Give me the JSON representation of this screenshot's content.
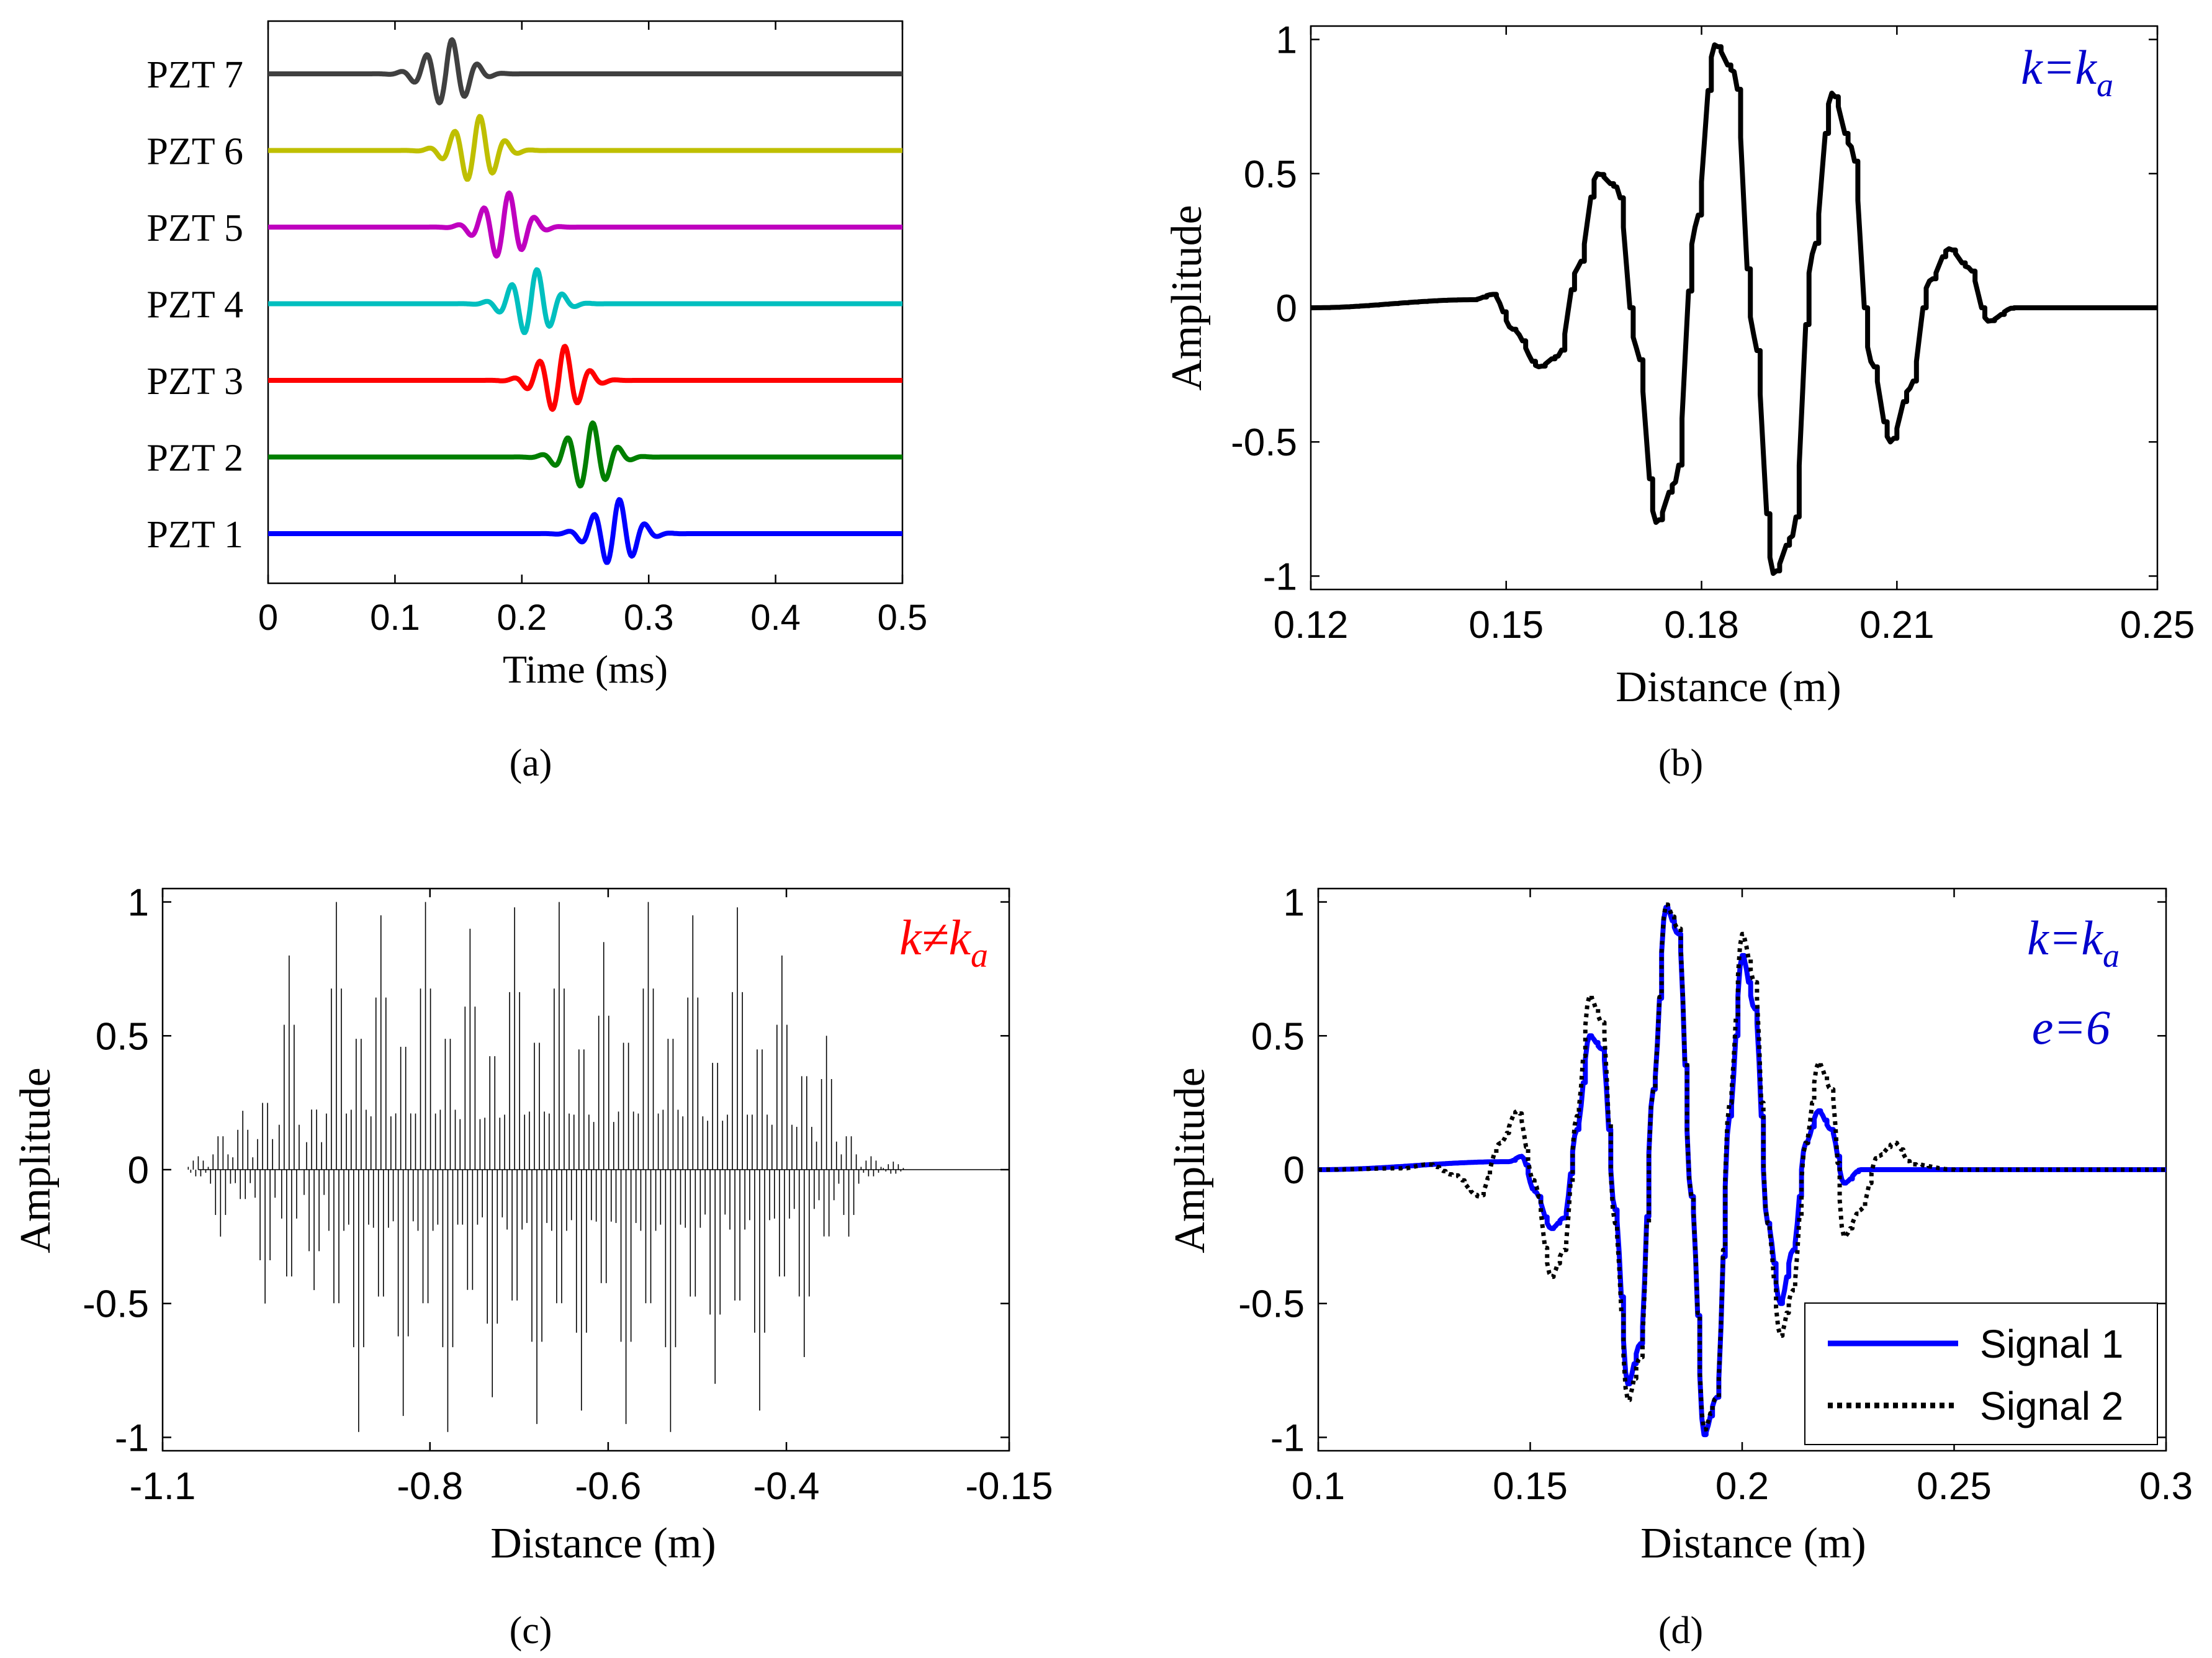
{
  "chart_data": [
    {
      "id": "a",
      "type": "line",
      "caption": "(a)",
      "xlabel": "Time (ms)",
      "ylabel": "",
      "xlim": [
        0,
        0.5
      ],
      "xticks": [
        "0",
        "0.1",
        "0.2",
        "0.3",
        "0.4",
        "0.5"
      ],
      "xtick_values": [
        0,
        0.1,
        0.2,
        0.3,
        0.4,
        0.5
      ],
      "ylim": [
        0,
        8
      ],
      "grid": false,
      "series": [
        {
          "name": "PZT 7",
          "color": "#404040",
          "center": 0.14,
          "offset": 7
        },
        {
          "name": "PZT 6",
          "color": "#bfbf00",
          "center": 0.162,
          "offset": 6
        },
        {
          "name": "PZT 5",
          "color": "#bf00bf",
          "center": 0.185,
          "offset": 5
        },
        {
          "name": "PZT 4",
          "color": "#00bfbf",
          "center": 0.207,
          "offset": 4
        },
        {
          "name": "PZT 3",
          "color": "#ff0000",
          "center": 0.229,
          "offset": 3
        },
        {
          "name": "PZT 2",
          "color": "#007f00",
          "center": 0.251,
          "offset": 2
        },
        {
          "name": "PZT 1",
          "color": "#0000ff",
          "center": 0.272,
          "offset": 1
        }
      ]
    },
    {
      "id": "b",
      "type": "line",
      "caption": "(b)",
      "annotation": {
        "main": "k=k",
        "sub": "a",
        "color": "#0000cc"
      },
      "xlabel": "Distance (m)",
      "ylabel": "Amplitude",
      "xlim": [
        0.12,
        0.25
      ],
      "xticks": [
        "0.12",
        "0.15",
        "0.18",
        "0.21",
        "0.25"
      ],
      "xtick_values": [
        0.12,
        0.15,
        0.18,
        0.21,
        0.25
      ],
      "ylim": [
        -1.05,
        1.05
      ],
      "yticks": [
        "1",
        "0.5",
        "0",
        "-0.5",
        "-1"
      ],
      "ytick_values": [
        1,
        0.5,
        0,
        -0.5,
        -1
      ],
      "grid": false,
      "series": [
        {
          "name": "k=ka",
          "color": "#000000",
          "x": [
            0.12,
            0.145,
            0.148,
            0.151,
            0.155,
            0.158,
            0.161,
            0.164,
            0.167,
            0.17,
            0.173,
            0.176,
            0.179,
            0.182,
            0.185,
            0.188,
            0.191,
            0.194,
            0.197,
            0.2,
            0.203,
            0.206,
            0.209,
            0.212,
            0.215,
            0.218,
            0.221,
            0.224,
            0.228,
            0.25
          ],
          "y": [
            0,
            0.03,
            0.05,
            -0.08,
            -0.22,
            -0.18,
            0.15,
            0.5,
            0.45,
            -0.15,
            -0.8,
            -0.65,
            0.3,
            0.98,
            0.88,
            -0.1,
            -0.99,
            -0.85,
            0.2,
            0.8,
            0.6,
            -0.2,
            -0.5,
            -0.3,
            0.1,
            0.22,
            0.15,
            -0.05,
            0,
            0
          ]
        }
      ]
    },
    {
      "id": "c",
      "type": "line",
      "caption": "(c)",
      "annotation": {
        "main": "k≠k",
        "sub": "a",
        "color": "#ff0000"
      },
      "xlabel": "Distance (m)",
      "ylabel": "Amplitude",
      "xlim": [
        -1.1,
        -0.15
      ],
      "xticks": [
        "-1.1",
        "-0.8",
        "-0.6",
        "-0.4",
        "-0.15"
      ],
      "xtick_values": [
        -1.1,
        -0.8,
        -0.6,
        -0.4,
        -0.15
      ],
      "ylim": [
        -1.05,
        1.05
      ],
      "yticks": [
        "1",
        "0.5",
        "0",
        "-0.5",
        "-1"
      ],
      "ytick_values": [
        1,
        0.5,
        0,
        -0.5,
        -1
      ],
      "grid": false,
      "series": [
        {
          "name": "k≠ka",
          "color": "#000000",
          "spikes_x": [
            -1.06,
            -1.035,
            -1.01,
            -0.985,
            -0.958,
            -0.93,
            -0.905,
            -0.88,
            -0.855,
            -0.83,
            -0.805,
            -0.78,
            -0.755,
            -0.73,
            -0.705,
            -0.68,
            -0.655,
            -0.63,
            -0.605,
            -0.58,
            -0.555,
            -0.53,
            -0.505,
            -0.48,
            -0.455,
            -0.43,
            -0.405,
            -0.38,
            -0.355,
            -0.33,
            -0.305,
            -0.28
          ],
          "spikes_y": [
            0.05,
            -0.25,
            0.22,
            -0.5,
            0.8,
            -0.45,
            1.0,
            -0.98,
            0.95,
            -0.92,
            1.0,
            -0.98,
            0.9,
            -0.85,
            0.98,
            -0.95,
            1.0,
            -0.9,
            0.85,
            -0.95,
            1.0,
            -0.98,
            0.95,
            -0.8,
            0.98,
            -0.9,
            0.8,
            -0.7,
            0.5,
            -0.25,
            0.05,
            0.03
          ]
        }
      ]
    },
    {
      "id": "d",
      "type": "line",
      "caption": "(d)",
      "annotation": {
        "main": "k=k",
        "sub": "a",
        "line2": "e=6",
        "color": "#0000cc"
      },
      "xlabel": "Distance (m)",
      "ylabel": "Amplitude",
      "xlim": [
        0.1,
        0.3
      ],
      "xticks": [
        "0.1",
        "0.15",
        "0.2",
        "0.25",
        "0.3"
      ],
      "xtick_values": [
        0.1,
        0.15,
        0.2,
        0.25,
        0.3
      ],
      "ylim": [
        -1.05,
        1.05
      ],
      "yticks": [
        "1",
        "0.5",
        "0",
        "-0.5",
        "-1"
      ],
      "ytick_values": [
        1,
        0.5,
        0,
        -0.5,
        -1
      ],
      "grid": false,
      "legend": {
        "placement": "bottom-right",
        "entries": [
          "Signal 1",
          "Signal 2"
        ]
      },
      "series": [
        {
          "name": "Signal 1",
          "color": "#0000ff",
          "style": "solid",
          "x": [
            0.1,
            0.145,
            0.148,
            0.151,
            0.155,
            0.158,
            0.161,
            0.164,
            0.167,
            0.17,
            0.173,
            0.176,
            0.179,
            0.182,
            0.185,
            0.188,
            0.191,
            0.194,
            0.197,
            0.2,
            0.203,
            0.206,
            0.209,
            0.212,
            0.215,
            0.218,
            0.221,
            0.224,
            0.228,
            0.3
          ],
          "y": [
            0,
            0.03,
            0.05,
            -0.08,
            -0.22,
            -0.18,
            0.15,
            0.5,
            0.45,
            -0.15,
            -0.8,
            -0.65,
            0.3,
            0.98,
            0.88,
            -0.1,
            -0.99,
            -0.85,
            0.2,
            0.8,
            0.6,
            -0.2,
            -0.5,
            -0.3,
            0.1,
            0.22,
            0.15,
            -0.05,
            0,
            0
          ]
        },
        {
          "name": "Signal 2",
          "color": "#000000",
          "style": "dotted",
          "x": [
            0.1,
            0.12,
            0.126,
            0.132,
            0.138,
            0.143,
            0.147,
            0.151,
            0.155,
            0.158,
            0.161,
            0.164,
            0.167,
            0.17,
            0.173,
            0.176,
            0.179,
            0.182,
            0.185,
            0.188,
            0.191,
            0.194,
            0.197,
            0.2,
            0.203,
            0.206,
            0.209,
            0.212,
            0.215,
            0.218,
            0.221,
            0.224,
            0.228,
            0.232,
            0.236,
            0.24,
            0.25,
            0.3
          ],
          "y": [
            0,
            0.005,
            0.02,
            -0.02,
            -0.1,
            0.1,
            0.22,
            -0.05,
            -0.4,
            -0.3,
            0.2,
            0.65,
            0.55,
            -0.2,
            -0.86,
            -0.7,
            0.3,
            0.99,
            0.9,
            -0.1,
            -0.97,
            -0.85,
            0.25,
            0.88,
            0.7,
            -0.2,
            -0.62,
            -0.45,
            0.1,
            0.4,
            0.3,
            -0.25,
            -0.15,
            0.05,
            0.1,
            0.02,
            0,
            0
          ]
        }
      ]
    }
  ]
}
